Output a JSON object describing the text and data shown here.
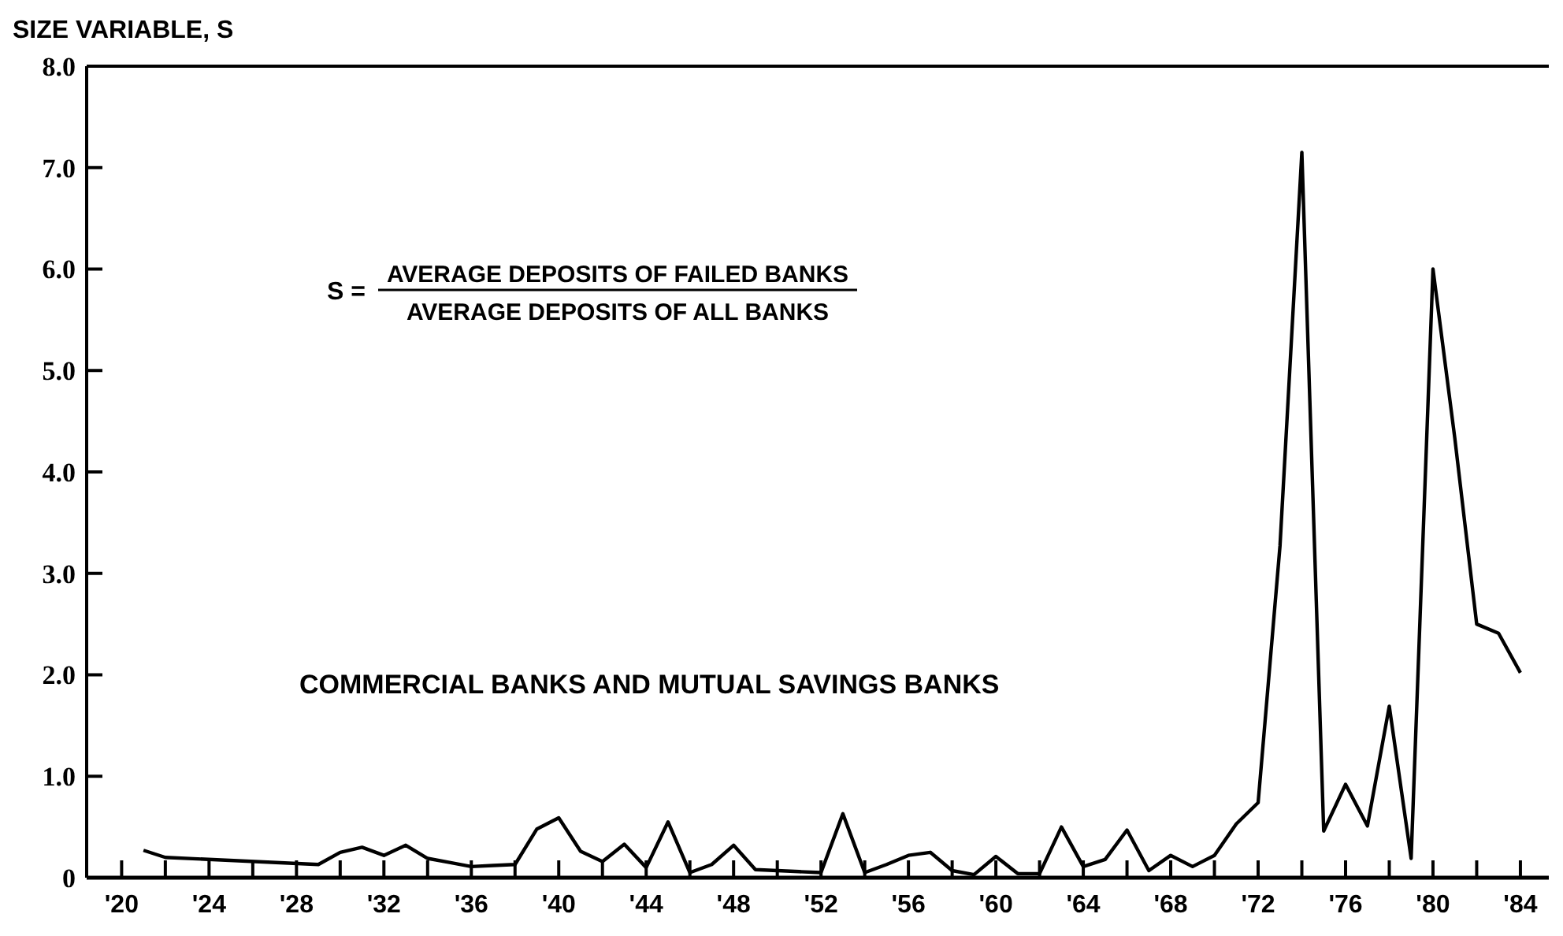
{
  "chart_data": {
    "type": "line",
    "ylabel": "SIZE VARIABLE, S",
    "annotations": [
      "S =",
      "AVERAGE DEPOSITS OF FAILED BANKS",
      "AVERAGE DEPOSITS OF ALL BANKS"
    ],
    "x": [
      1921,
      1922,
      1929,
      1930,
      1931,
      1932,
      1933,
      1934,
      1935,
      1936,
      1937,
      1938,
      1939,
      1940,
      1941,
      1942,
      1943,
      1944,
      1945,
      1946,
      1947,
      1948,
      1949,
      1950,
      1951,
      1952,
      1953,
      1954,
      1955,
      1956,
      1957,
      1958,
      1959,
      1960,
      1961,
      1962,
      1963,
      1964,
      1965,
      1966,
      1967,
      1968,
      1969,
      1970,
      1971,
      1972,
      1973,
      1974,
      1975,
      1976,
      1977,
      1978,
      1979,
      1980,
      1981,
      1982,
      1983,
      1984
    ],
    "series": [
      {
        "name": "COMMERCIAL BANKS AND MUTUAL SAVINGS BANKS",
        "color": "#000000",
        "values": [
          0.27,
          0.2,
          0.13,
          0.25,
          0.3,
          0.22,
          0.32,
          0.19,
          0.15,
          0.11,
          0.12,
          0.13,
          0.48,
          0.59,
          0.26,
          0.16,
          0.33,
          0.1,
          0.55,
          0.05,
          0.13,
          0.32,
          0.08,
          0.07,
          0.06,
          0.05,
          0.63,
          0.05,
          0.13,
          0.22,
          0.25,
          0.07,
          0.03,
          0.21,
          0.04,
          0.04,
          0.5,
          0.11,
          0.18,
          0.47,
          0.07,
          0.22,
          0.11,
          0.22,
          0.53,
          0.74,
          3.27,
          7.15,
          0.46,
          0.92,
          0.51,
          1.69,
          0.19,
          6.0,
          4.33,
          2.5,
          2.41,
          2.02
        ]
      }
    ],
    "xlim": [
      1918.4,
      1985.3
    ],
    "xticks": [
      {
        "value": 1920,
        "label": "'20"
      },
      {
        "value": 1922,
        "label": null
      },
      {
        "value": 1924,
        "label": "'24"
      },
      {
        "value": 1926,
        "label": null
      },
      {
        "value": 1928,
        "label": "'28"
      },
      {
        "value": 1930,
        "label": null
      },
      {
        "value": 1932,
        "label": "'32"
      },
      {
        "value": 1934,
        "label": null
      },
      {
        "value": 1936,
        "label": "'36"
      },
      {
        "value": 1938,
        "label": null
      },
      {
        "value": 1940,
        "label": "'40"
      },
      {
        "value": 1942,
        "label": null
      },
      {
        "value": 1944,
        "label": "'44"
      },
      {
        "value": 1946,
        "label": null
      },
      {
        "value": 1948,
        "label": "'48"
      },
      {
        "value": 1950,
        "label": null
      },
      {
        "value": 1952,
        "label": "'52"
      },
      {
        "value": 1954,
        "label": null
      },
      {
        "value": 1956,
        "label": "'56"
      },
      {
        "value": 1958,
        "label": null
      },
      {
        "value": 1960,
        "label": "'60"
      },
      {
        "value": 1962,
        "label": null
      },
      {
        "value": 1964,
        "label": "'64"
      },
      {
        "value": 1966,
        "label": null
      },
      {
        "value": 1968,
        "label": "'68"
      },
      {
        "value": 1970,
        "label": null
      },
      {
        "value": 1972,
        "label": "'72"
      },
      {
        "value": 1974,
        "label": null
      },
      {
        "value": 1976,
        "label": "'76"
      },
      {
        "value": 1978,
        "label": null
      },
      {
        "value": 1980,
        "label": "'80"
      },
      {
        "value": 1982,
        "label": null
      },
      {
        "value": 1984,
        "label": "'84"
      }
    ],
    "ylim": [
      0,
      8
    ],
    "yticks": [
      0,
      {
        "value": 1,
        "label": "1.0"
      },
      {
        "value": 2,
        "label": "2.0"
      },
      {
        "value": 3,
        "label": "3.0"
      },
      {
        "value": 4,
        "label": "4.0"
      },
      {
        "value": 5,
        "label": "5.0"
      },
      {
        "value": 6,
        "label": "6.0"
      },
      {
        "value": 7,
        "label": "7.0"
      },
      {
        "value": 8,
        "label": "8.0"
      }
    ],
    "grid": false,
    "marker": "none",
    "line_style": "solid"
  }
}
